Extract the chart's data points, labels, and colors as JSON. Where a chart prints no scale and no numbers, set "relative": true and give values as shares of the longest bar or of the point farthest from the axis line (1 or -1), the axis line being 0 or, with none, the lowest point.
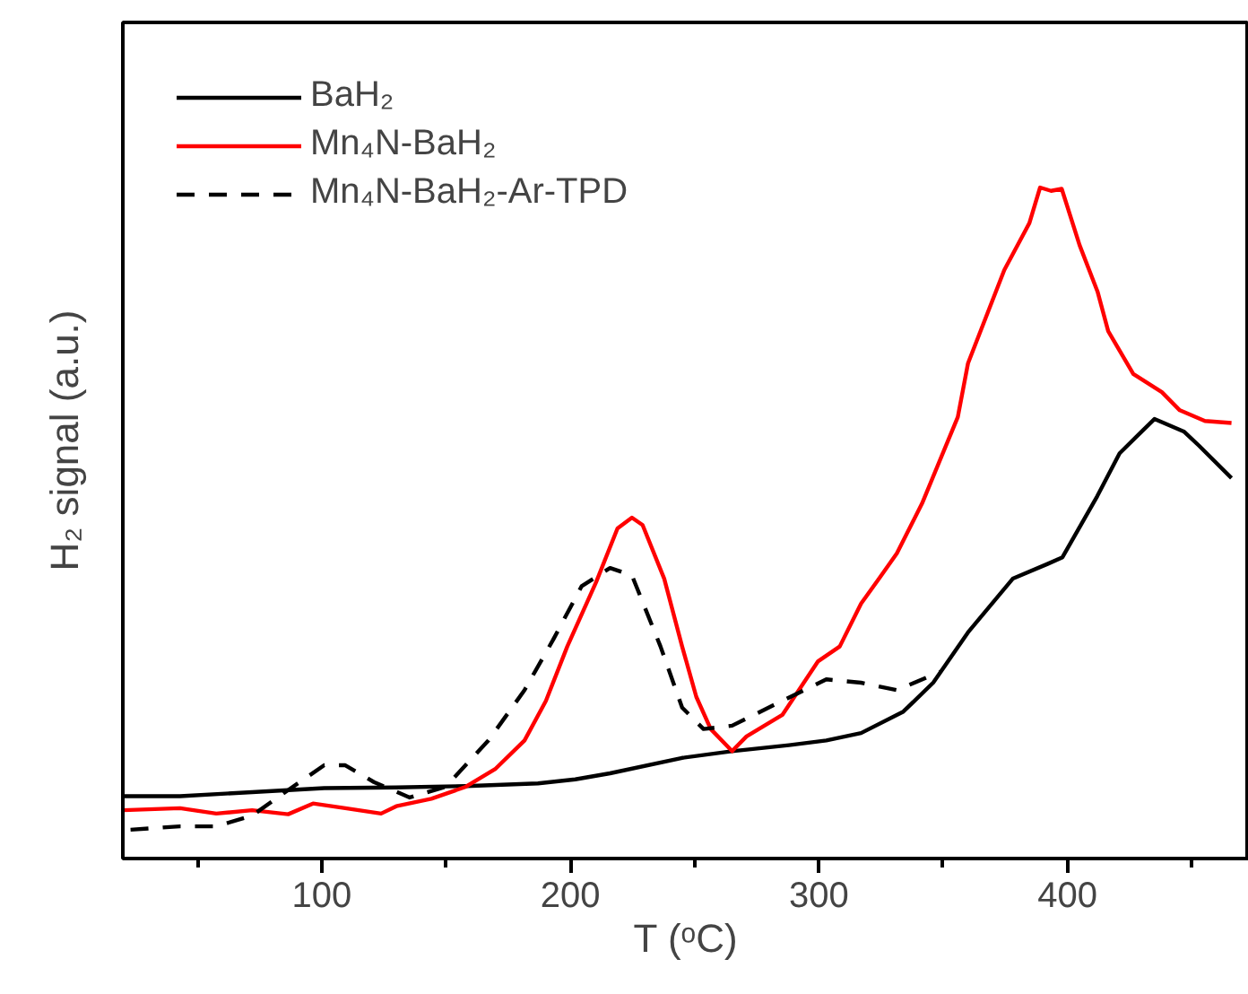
{
  "chart_data": {
    "type": "line",
    "relative": true,
    "xlabel": "T (ᵒC)",
    "ylabel": "H₂ signal (a.u.)",
    "xlim": [
      20,
      473
    ],
    "xticks": [
      {
        "value": 50,
        "label": null
      },
      100,
      {
        "value": 150,
        "label": null
      },
      200,
      {
        "value": 250,
        "label": null
      },
      300,
      {
        "value": 350,
        "label": null
      },
      400,
      {
        "value": 450,
        "label": null
      }
    ],
    "legend": "top left",
    "grid": false,
    "series": [
      {
        "name": "BaH₂",
        "color": "#000000",
        "line_style": "solid",
        "x": [
          20.2,
          43,
          72,
          101,
          130,
          158,
          187,
          202,
          216,
          245,
          265,
          288,
          303,
          317,
          334,
          346,
          360,
          378,
          392,
          398,
          412,
          421,
          435,
          447,
          453,
          466
        ],
        "values": [
          0.093,
          0.093,
          0.099,
          0.105,
          0.106,
          0.108,
          0.112,
          0.118,
          0.127,
          0.15,
          0.16,
          0.169,
          0.176,
          0.187,
          0.219,
          0.262,
          0.337,
          0.417,
          0.439,
          0.449,
          0.54,
          0.604,
          0.655,
          0.636,
          0.615,
          0.567
        ]
      },
      {
        "name": "Mn₄N-BaH₂",
        "color": "#ff0000",
        "line_style": "solid",
        "x": [
          20.2,
          43,
          57.6,
          72,
          86.5,
          96.5,
          109.5,
          123.9,
          130,
          144.1,
          158,
          170,
          181.6,
          190.2,
          198.8,
          210.4,
          219,
          224.8,
          229.1,
          237.8,
          245,
          250.7,
          256.5,
          265.1,
          270.9,
          285.3,
          299.7,
          308.4,
          317,
          324.2,
          331.4,
          341.5,
          355.9,
          360,
          374.6,
          384.7,
          389,
          393.4,
          397.7,
          404.9,
          412.1,
          416.4,
          426.5,
          438,
          445.2,
          455.3,
          466
        ],
        "values": [
          0.072,
          0.075,
          0.067,
          0.072,
          0.066,
          0.082,
          0.075,
          0.067,
          0.078,
          0.089,
          0.107,
          0.134,
          0.176,
          0.235,
          0.316,
          0.412,
          0.492,
          0.508,
          0.497,
          0.417,
          0.316,
          0.241,
          0.193,
          0.16,
          0.182,
          0.214,
          0.294,
          0.316,
          0.38,
          0.417,
          0.455,
          0.529,
          0.658,
          0.738,
          0.877,
          0.947,
          1.0,
          0.995,
          0.998,
          0.914,
          0.845,
          0.786,
          0.722,
          0.695,
          0.668,
          0.652,
          0.649
        ]
      },
      {
        "name": "Mn₄N-BaH₂-Ar-TPD",
        "color": "#000000",
        "line_style": "dashed",
        "x": [
          23.1,
          43,
          57.6,
          72,
          86.5,
          101,
          109.5,
          121,
          135.4,
          149.9,
          167.1,
          181.6,
          193.1,
          204.6,
          216,
          224.8,
          236.3,
          245,
          253.6,
          265.1,
          285.3,
          303,
          317,
          331.4,
          348.7
        ],
        "values": [
          0.043,
          0.048,
          0.048,
          0.064,
          0.102,
          0.139,
          0.139,
          0.114,
          0.091,
          0.107,
          0.176,
          0.251,
          0.326,
          0.406,
          0.433,
          0.422,
          0.316,
          0.225,
          0.193,
          0.198,
          0.235,
          0.267,
          0.262,
          0.251,
          0.278
        ]
      }
    ]
  }
}
